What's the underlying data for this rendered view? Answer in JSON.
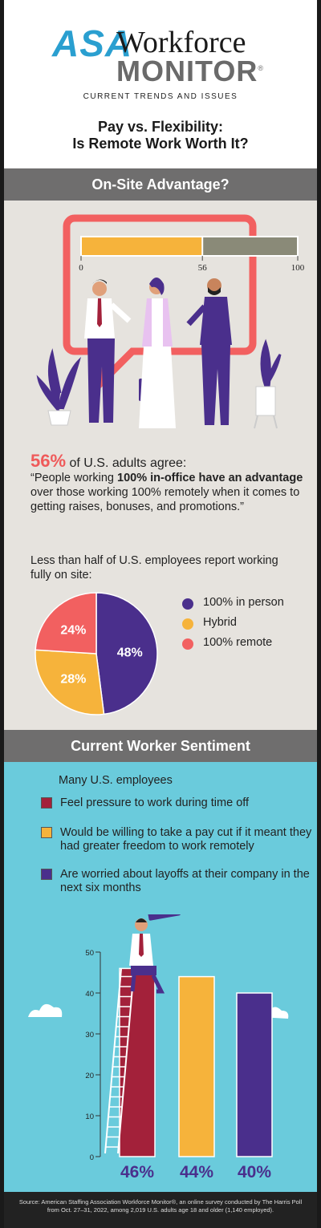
{
  "header": {
    "logo_asa": "ASA",
    "logo_workforce": "Workforce",
    "logo_monitor": "MONITOR",
    "logo_reg": "®",
    "subtitle": "CURRENT TRENDS AND ISSUES",
    "title_line1": "Pay vs. Flexibility:",
    "title_line2": "Is Remote Work Worth It?"
  },
  "section_onsite": {
    "band_title": "On-Site Advantage?",
    "stat_percent": "56%",
    "stat_text": "of U.S. adults agree:",
    "quote_pre": "“People working ",
    "quote_bold": "100% in-office have an advantage",
    "quote_post": " over those working 100% remotely when it comes to getting raises, bonuses, and promotions.”",
    "pie_intro": "Less than half of U.S. employees report working fully on site:"
  },
  "section_sentiment": {
    "band_title": "Current Worker Sentiment",
    "intro": "Many U.S. employees",
    "items": [
      "Feel pressure to work during time off",
      "Would be willing to take a pay cut if it meant they had greater freedom to work remotely",
      "Are worried about layoffs at their company in the next six months"
    ]
  },
  "footer": {
    "source": "Source: American Staffing Association Workforce Monitor®, an online survey conducted by The Harris Poll from Oct. 27–31, 2022, among 2,019 U.S. adults age 18 and older (1,140 employed)."
  },
  "colors": {
    "purple": "#4a2f8c",
    "yellow": "#f6b33b",
    "coral": "#f26060",
    "crimson": "#a3213a",
    "gray_bar": "#8a8a78",
    "band": "#6f6e6e",
    "onsite_bg": "#e6e3de",
    "sentiment_bg": "#6acbdc"
  },
  "chart_data": [
    {
      "type": "bar",
      "orientation": "horizontal-progress",
      "value": 56,
      "xlim": [
        0,
        100
      ],
      "tick_labels": [
        "0",
        "56",
        "100"
      ]
    },
    {
      "type": "pie",
      "labels": [
        "100% in person",
        "Hybrid",
        "100% remote"
      ],
      "values": [
        48,
        28,
        24
      ],
      "value_labels": [
        "48%",
        "28%",
        "24%"
      ],
      "colors": [
        "#4a2f8c",
        "#f6b33b",
        "#f26060"
      ],
      "legend": "right"
    },
    {
      "type": "bar",
      "categories": [
        "Feel pressure to work during time off",
        "Would be willing to take a pay cut if it meant they had greater freedom to work remotely",
        "Are worried about layoffs at their company in the next six months"
      ],
      "values": [
        46,
        44,
        40
      ],
      "value_labels": [
        "46%",
        "44%",
        "40%"
      ],
      "colors": [
        "#a3213a",
        "#f6b33b",
        "#4a2f8c"
      ],
      "ylim": [
        0,
        50
      ],
      "yticks": [
        "0",
        "10",
        "20",
        "30",
        "40",
        "50"
      ],
      "grid": false
    }
  ]
}
